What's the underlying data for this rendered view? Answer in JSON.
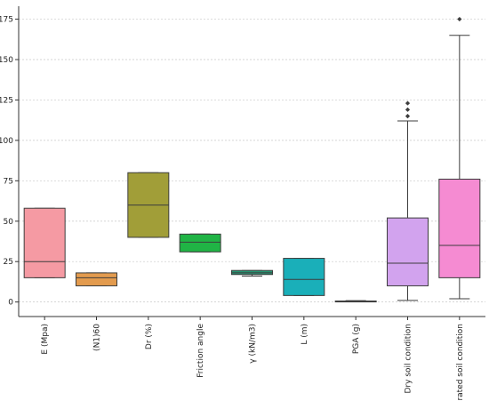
{
  "chart_data": {
    "type": "box",
    "title": "",
    "xlabel": "",
    "ylabel": "",
    "ylim": [
      -9,
      183
    ],
    "yticks": [
      0,
      25,
      50,
      75,
      100,
      125,
      150,
      175
    ],
    "grid": "horizontal dashed",
    "legend": "none",
    "categories": [
      "E (Mpa)",
      "(N1)60",
      "Dr (%)",
      "Friction angle",
      "γ (kN/m3)",
      "L (m)",
      "PGA (g)",
      "Dry soil condition",
      "Saturated soil condition"
    ],
    "boxes": [
      {
        "category": "E (Mpa)",
        "color": "#f59aa3",
        "q1": 15,
        "median": 25,
        "q3": 58,
        "whisker_low": 15,
        "whisker_high": 58,
        "outliers": []
      },
      {
        "category": "(N1)60",
        "color": "#e39b4e",
        "q1": 10,
        "median": 15,
        "q3": 18,
        "whisker_low": 10,
        "whisker_high": 18,
        "outliers": []
      },
      {
        "category": "Dr (%)",
        "color": "#a19e38",
        "q1": 40,
        "median": 60,
        "q3": 80,
        "whisker_low": 40,
        "whisker_high": 80,
        "outliers": []
      },
      {
        "category": "Friction angle",
        "color": "#20b445",
        "q1": 31,
        "median": 37,
        "q3": 42,
        "whisker_low": 31,
        "whisker_high": 42,
        "outliers": []
      },
      {
        "category": "γ (kN/m3)",
        "color": "#259673",
        "q1": 17,
        "median": 18,
        "q3": 19.5,
        "whisker_low": 16,
        "whisker_high": 19.5,
        "outliers": []
      },
      {
        "category": "L (m)",
        "color": "#1aafb9",
        "q1": 4,
        "median": 14,
        "q3": 27,
        "whisker_low": 4,
        "whisker_high": 27,
        "outliers": []
      },
      {
        "category": "PGA (g)",
        "color": "#3a8fd0",
        "q1": 0.1,
        "median": 0.3,
        "q3": 0.6,
        "whisker_low": 0.05,
        "whisker_high": 0.8,
        "outliers": []
      },
      {
        "category": "Dry soil condition",
        "color": "#d2a3ee",
        "q1": 10,
        "median": 24,
        "q3": 52,
        "whisker_low": 1,
        "whisker_high": 112,
        "outliers": [
          115,
          119,
          123
        ]
      },
      {
        "category": "Saturated soil condition",
        "color": "#f58bd2",
        "q1": 15,
        "median": 35,
        "q3": 76,
        "whisker_low": 2,
        "whisker_high": 165,
        "outliers": [
          175
        ]
      }
    ]
  }
}
